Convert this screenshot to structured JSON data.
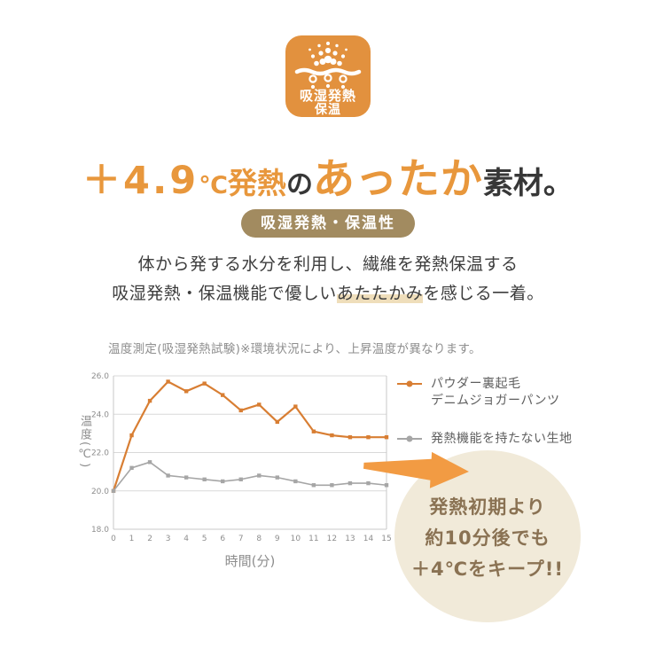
{
  "hero_icon": {
    "line1": "吸湿発熱",
    "line2": "保温",
    "bg_color": "#E2913E"
  },
  "heading": {
    "part_temp": "＋4.9",
    "part_degree": "℃",
    "part_hatsunetsu": "発熱",
    "part_no": "の",
    "part_attaka": "あったか",
    "part_sozai": "素材。",
    "orange": "#E8973C",
    "dark": "#373737"
  },
  "badge": {
    "label": "吸湿発熱・保温性",
    "bg": "#A28B60"
  },
  "description": {
    "line1": "体から発する水分を利用し、繊維を発熱保温する",
    "line2_pre": "吸湿発熱・保温機能で優しい",
    "line2_highlight": "あたたかみ",
    "line2_post": "を感じる一着。"
  },
  "chart_note": "温度測定(吸湿発熱試験)※環境状況により、上昇温度が異なります。",
  "chart_data": {
    "type": "line",
    "x": [
      0,
      1,
      2,
      3,
      4,
      5,
      6,
      7,
      8,
      9,
      10,
      11,
      12,
      13,
      14,
      15
    ],
    "series": [
      {
        "name": "パウダー裏起毛デニムジョガーパンツ",
        "color": "#D87E33",
        "values": [
          20.0,
          22.9,
          24.7,
          25.7,
          25.2,
          25.6,
          25.0,
          24.2,
          24.5,
          23.6,
          24.4,
          23.1,
          22.9,
          22.8,
          22.8,
          22.8
        ]
      },
      {
        "name": "発熱機能を持たない生地",
        "color": "#A6A6A6",
        "values": [
          20.0,
          21.2,
          21.5,
          20.8,
          20.7,
          20.6,
          20.5,
          20.6,
          20.8,
          20.7,
          20.5,
          20.3,
          20.3,
          20.4,
          20.4,
          20.3
        ]
      }
    ],
    "title": "温度測定(吸湿発熱試験)",
    "xlabel": "時間(分)",
    "ylabel": "温度(℃)",
    "xlim": [
      0,
      15
    ],
    "ylim": [
      18.0,
      26.0
    ],
    "ytick_step": 2.0,
    "grid": true,
    "legend_position": "right",
    "grid_color": "#D9D9D9",
    "axis_color": "#C8C8C8",
    "tick_color": "#8E8E8E"
  },
  "legend": {
    "items": [
      {
        "line1": "パウダー裏起毛",
        "line2": "デニムジョガーパンツ",
        "color": "#D87E33"
      },
      {
        "line1": "発熱機能を持たない生地",
        "line2": "",
        "color": "#A6A6A6"
      }
    ]
  },
  "callout": {
    "line1": "発熱初期より",
    "line2": "約10分後でも",
    "line3": "＋4℃をキープ!!",
    "bg": "#F1EAD9",
    "text_color": "#8A7253",
    "arrow_color": "#F29B43"
  }
}
